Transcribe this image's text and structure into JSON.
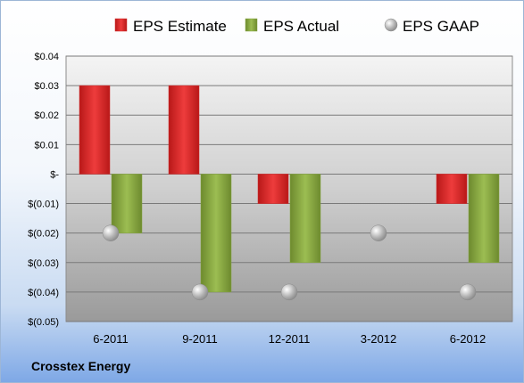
{
  "company": "Crosstex Energy",
  "colors": {
    "estimate": "#d42a2a",
    "actual": "#86a640",
    "gaap": "#b3b3b3"
  },
  "chart_data": {
    "type": "bar",
    "categories": [
      "6-2011",
      "9-2011",
      "12-2011",
      "3-2012",
      "6-2012"
    ],
    "series": [
      {
        "name": "EPS Estimate",
        "marker": "bar",
        "values": [
          0.03,
          0.03,
          -0.01,
          null,
          -0.01
        ]
      },
      {
        "name": "EPS Actual",
        "marker": "bar",
        "values": [
          -0.02,
          -0.04,
          -0.03,
          null,
          -0.03
        ]
      },
      {
        "name": "EPS GAAP",
        "marker": "circle",
        "values": [
          -0.02,
          -0.04,
          -0.04,
          -0.02,
          -0.04
        ]
      }
    ],
    "ylim": [
      -0.05,
      0.04
    ],
    "yticks": [
      0.04,
      0.03,
      0.02,
      0.01,
      0,
      -0.01,
      -0.02,
      -0.03,
      -0.04,
      -0.05
    ],
    "ytick_labels": [
      "$0.04",
      "$0.03",
      "$0.02",
      "$0.01",
      "$-",
      "$(0.01)",
      "$(0.02)",
      "$(0.03)",
      "$(0.04)",
      "$(0.05)"
    ],
    "legend": "top",
    "grid": true
  }
}
